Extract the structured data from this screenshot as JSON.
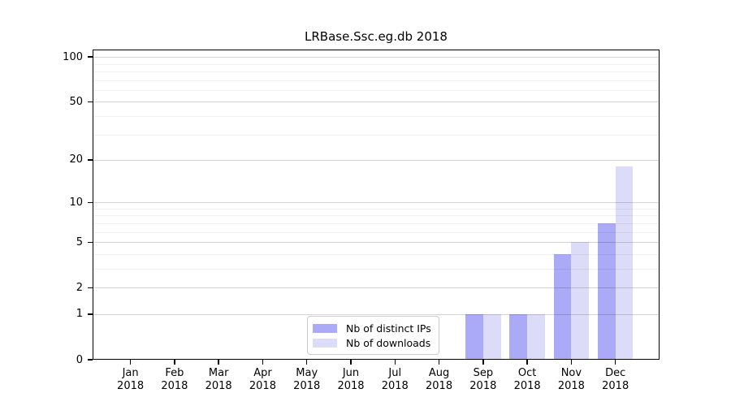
{
  "chart_data": {
    "type": "bar",
    "title": "LRBase.Ssc.eg.db 2018",
    "categories": [
      "Jan 2018",
      "Feb 2018",
      "Mar 2018",
      "Apr 2018",
      "May 2018",
      "Jun 2018",
      "Jul 2018",
      "Aug 2018",
      "Sep 2018",
      "Oct 2018",
      "Nov 2018",
      "Dec 2018"
    ],
    "x_tick_lines": [
      {
        "month": "Jan",
        "year": "2018"
      },
      {
        "month": "Feb",
        "year": "2018"
      },
      {
        "month": "Mar",
        "year": "2018"
      },
      {
        "month": "Apr",
        "year": "2018"
      },
      {
        "month": "May",
        "year": "2018"
      },
      {
        "month": "Jun",
        "year": "2018"
      },
      {
        "month": "Jul",
        "year": "2018"
      },
      {
        "month": "Aug",
        "year": "2018"
      },
      {
        "month": "Sep",
        "year": "2018"
      },
      {
        "month": "Oct",
        "year": "2018"
      },
      {
        "month": "Nov",
        "year": "2018"
      },
      {
        "month": "Dec",
        "year": "2018"
      }
    ],
    "series": [
      {
        "name": "Nb of distinct IPs",
        "color": "#aaaaf6",
        "values": [
          0,
          0,
          0,
          0,
          0,
          0,
          0,
          0,
          1,
          1,
          4,
          7
        ]
      },
      {
        "name": "Nb of downloads",
        "color": "#dcdcf8",
        "values": [
          0,
          0,
          0,
          0,
          0,
          0,
          0,
          0,
          1,
          1,
          5,
          18
        ]
      }
    ],
    "y_axis": {
      "scale": "log1p",
      "major_ticks": [
        0,
        1,
        2,
        5,
        10,
        20,
        50,
        100
      ],
      "minor_ticks": [
        3,
        4,
        6,
        7,
        8,
        9,
        30,
        40,
        60,
        70,
        80,
        90
      ],
      "ylim": [
        0,
        112
      ]
    },
    "grid": "on",
    "legend": {
      "position": "inside-bottom-center",
      "entries": [
        "Nb of distinct IPs",
        "Nb of downloads"
      ]
    },
    "colors": {
      "bar_dark": "#aaaaf6",
      "bar_light": "#dcdcf8",
      "spine": "#000000",
      "background": "#ffffff"
    }
  }
}
